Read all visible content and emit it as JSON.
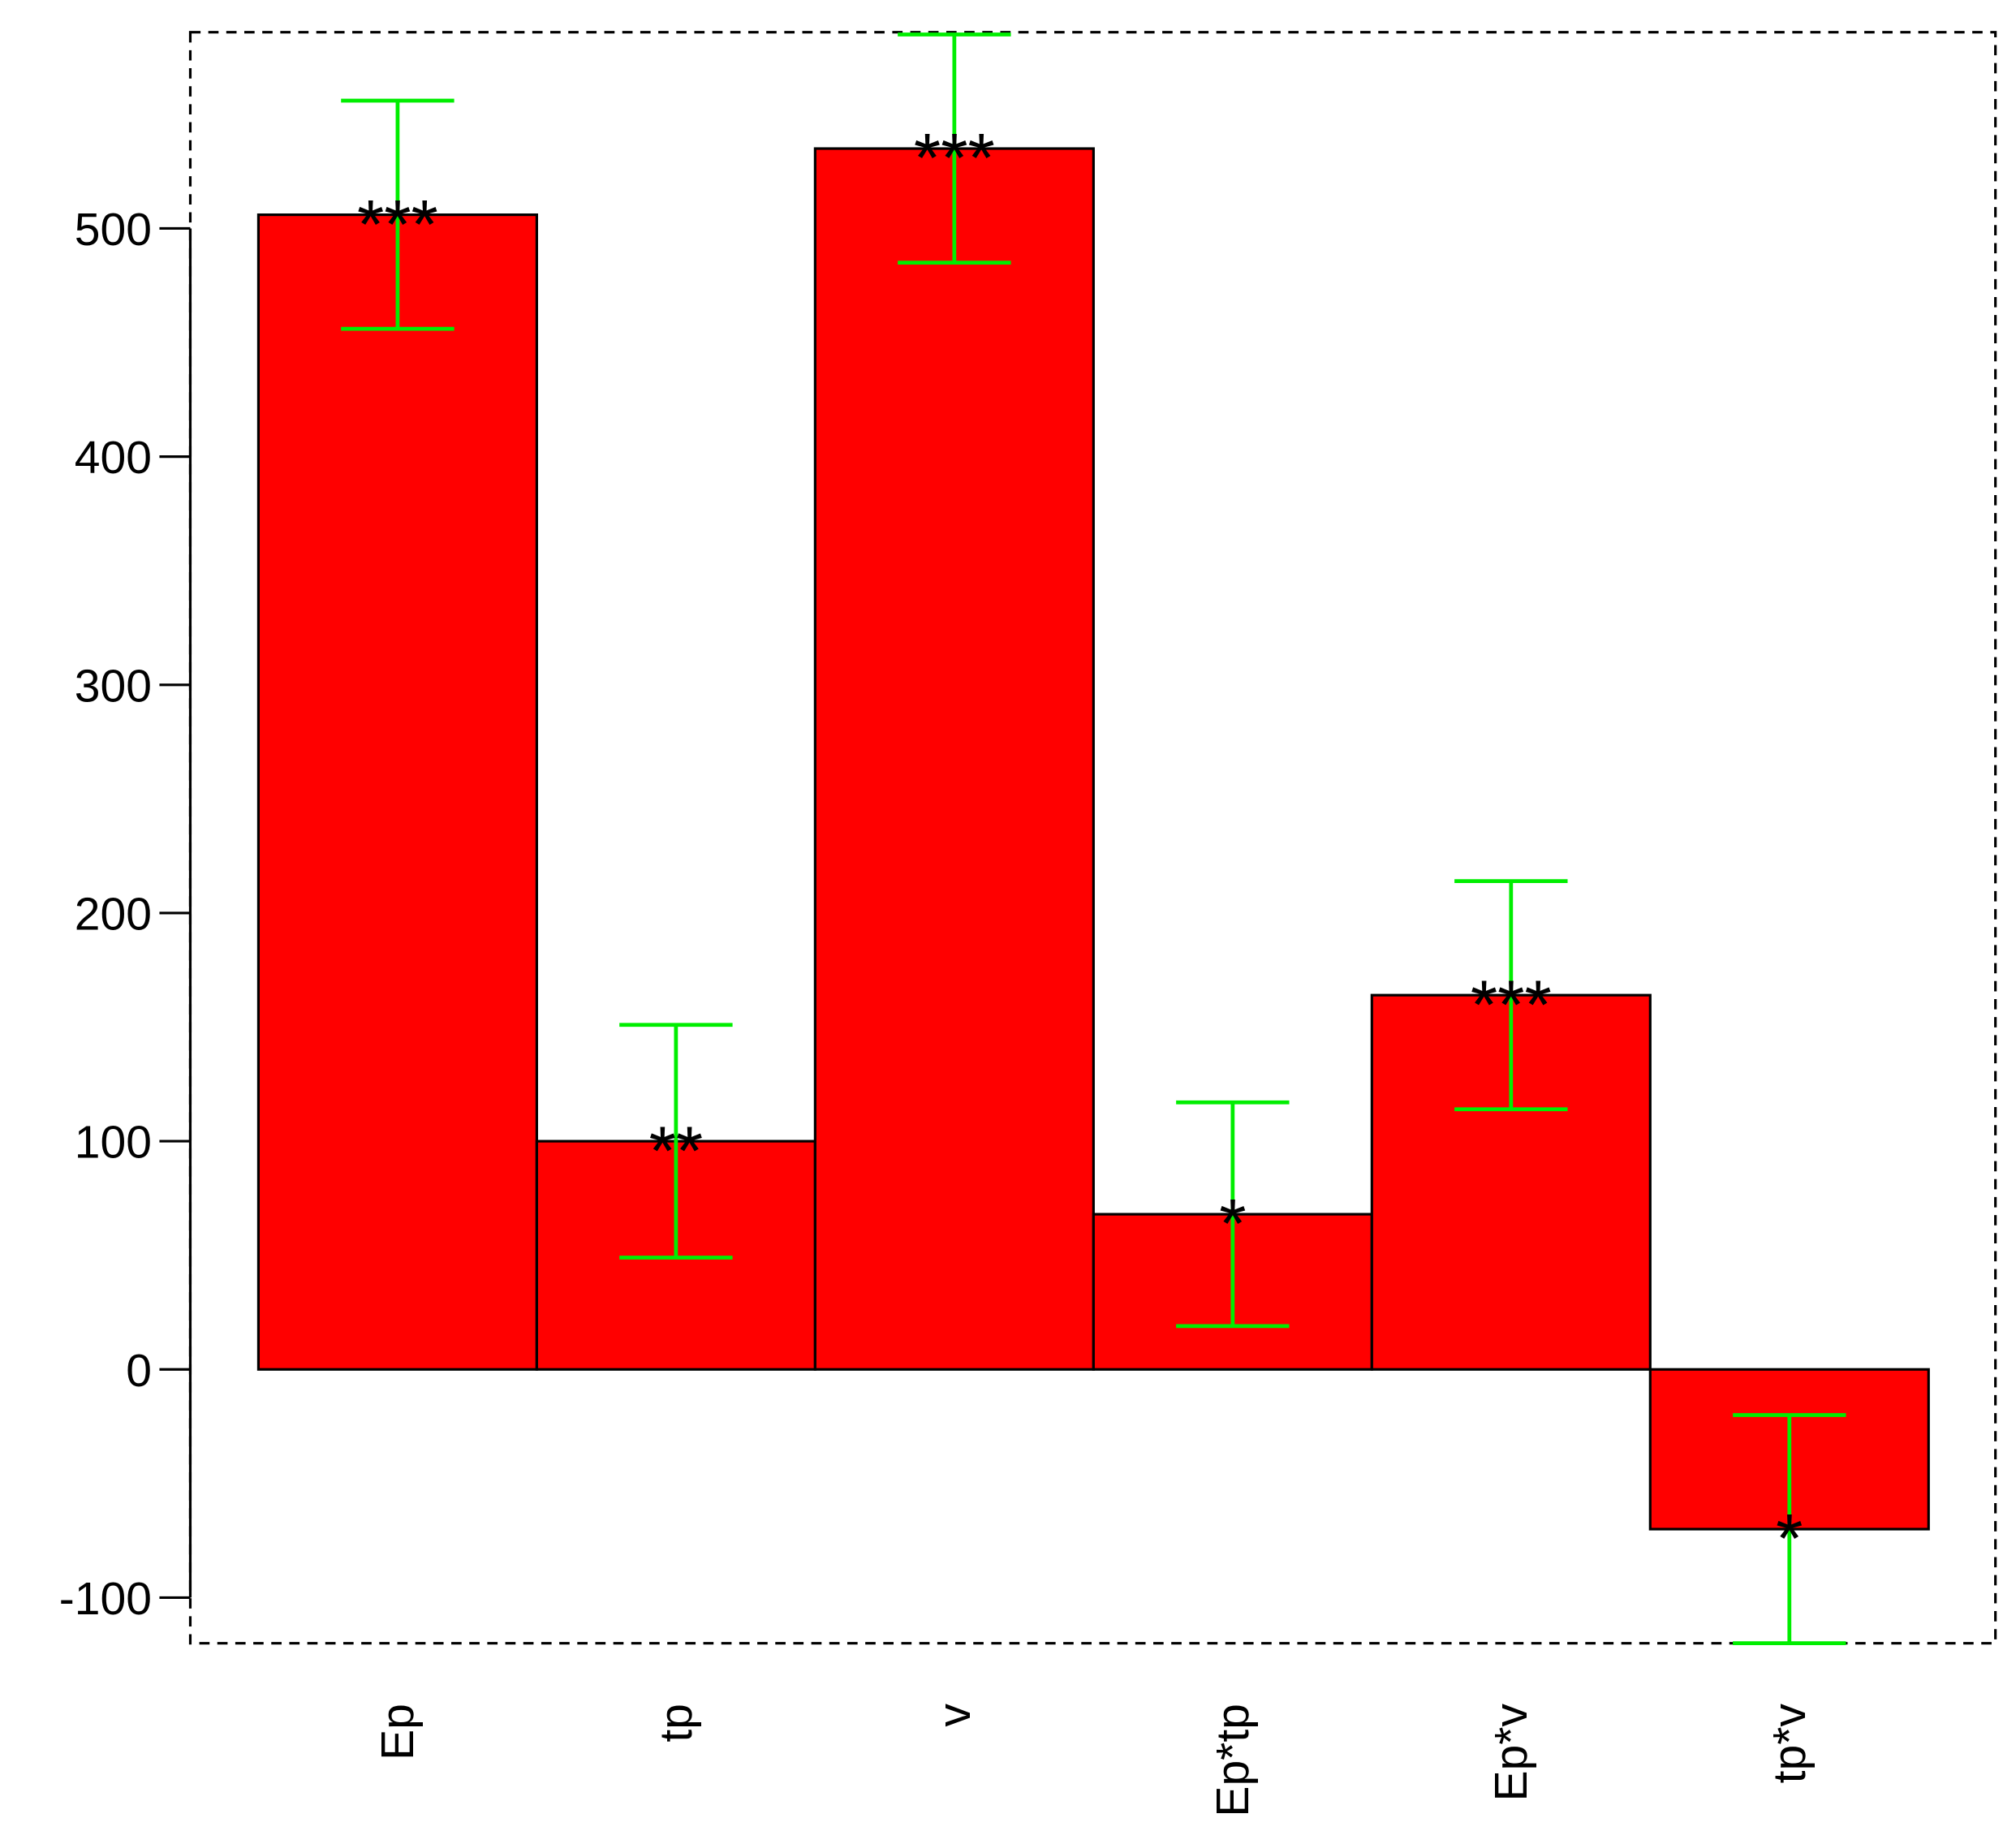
{
  "chart_data": {
    "type": "bar",
    "categories": [
      "Ep",
      "tp",
      "v",
      "Ep*tp",
      "Ep*v",
      "tp*v"
    ],
    "values": [
      506,
      100,
      535,
      68,
      164,
      -70
    ],
    "errors": [
      50,
      51,
      50,
      49,
      50,
      50
    ],
    "significance": [
      "***",
      "**",
      "***",
      "*",
      "***",
      "*"
    ],
    "color": "#ff0000",
    "error_color": "#00ee00",
    "ylim": [
      -120,
      586
    ],
    "yticks": [
      -100,
      0,
      100,
      200,
      300,
      400,
      500
    ]
  }
}
